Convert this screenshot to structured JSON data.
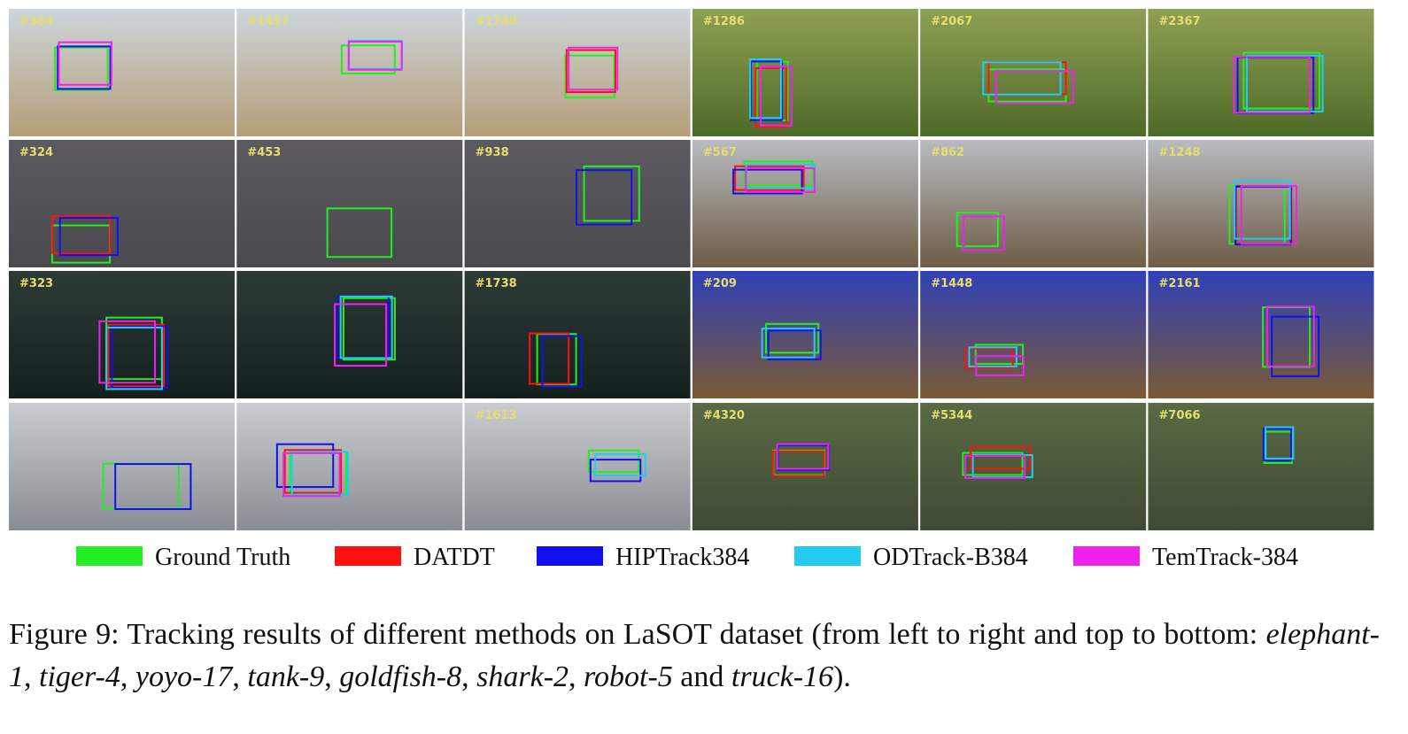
{
  "figure": {
    "frame_labels": [
      "#364",
      "#1457",
      "#1740",
      "#1286",
      "#2067",
      "#2367",
      "#324",
      "#453",
      "#938",
      "#567",
      "#862",
      "#1248",
      "#323",
      null,
      "#1738",
      "#209",
      "#1448",
      "#2161",
      null,
      null,
      "#1613",
      "#4320",
      "#5344",
      "#7066"
    ],
    "legend": [
      {
        "name": "Ground Truth",
        "color": "#22ee22"
      },
      {
        "name": "DATDT",
        "color": "#ff1111"
      },
      {
        "name": "HIPTrack384",
        "color": "#1111ee"
      },
      {
        "name": "ODTrack-B384",
        "color": "#22ccf0"
      },
      {
        "name": "TemTrack-384",
        "color": "#ee22ee"
      }
    ],
    "caption": [
      {
        "text": "Figure 9: Tracking results of different methods on LaSOT dataset (from left to right and top to bottom: ",
        "italic": false
      },
      {
        "text": "elephant-1",
        "italic": true
      },
      {
        "text": ", ",
        "italic": false
      },
      {
        "text": "tiger-4",
        "italic": true
      },
      {
        "text": ", ",
        "italic": false
      },
      {
        "text": "yoyo-17",
        "italic": true
      },
      {
        "text": ", ",
        "italic": false
      },
      {
        "text": "tank-9",
        "italic": true
      },
      {
        "text": ", ",
        "italic": false
      },
      {
        "text": "goldfish-8",
        "italic": true
      },
      {
        "text": ", ",
        "italic": false
      },
      {
        "text": "shark-2",
        "italic": true
      },
      {
        "text": ", ",
        "italic": false
      },
      {
        "text": "robot-5",
        "italic": true
      },
      {
        "text": " and ",
        "italic": false
      },
      {
        "text": "truck-16",
        "italic": true
      },
      {
        "text": ").",
        "italic": false
      }
    ]
  }
}
